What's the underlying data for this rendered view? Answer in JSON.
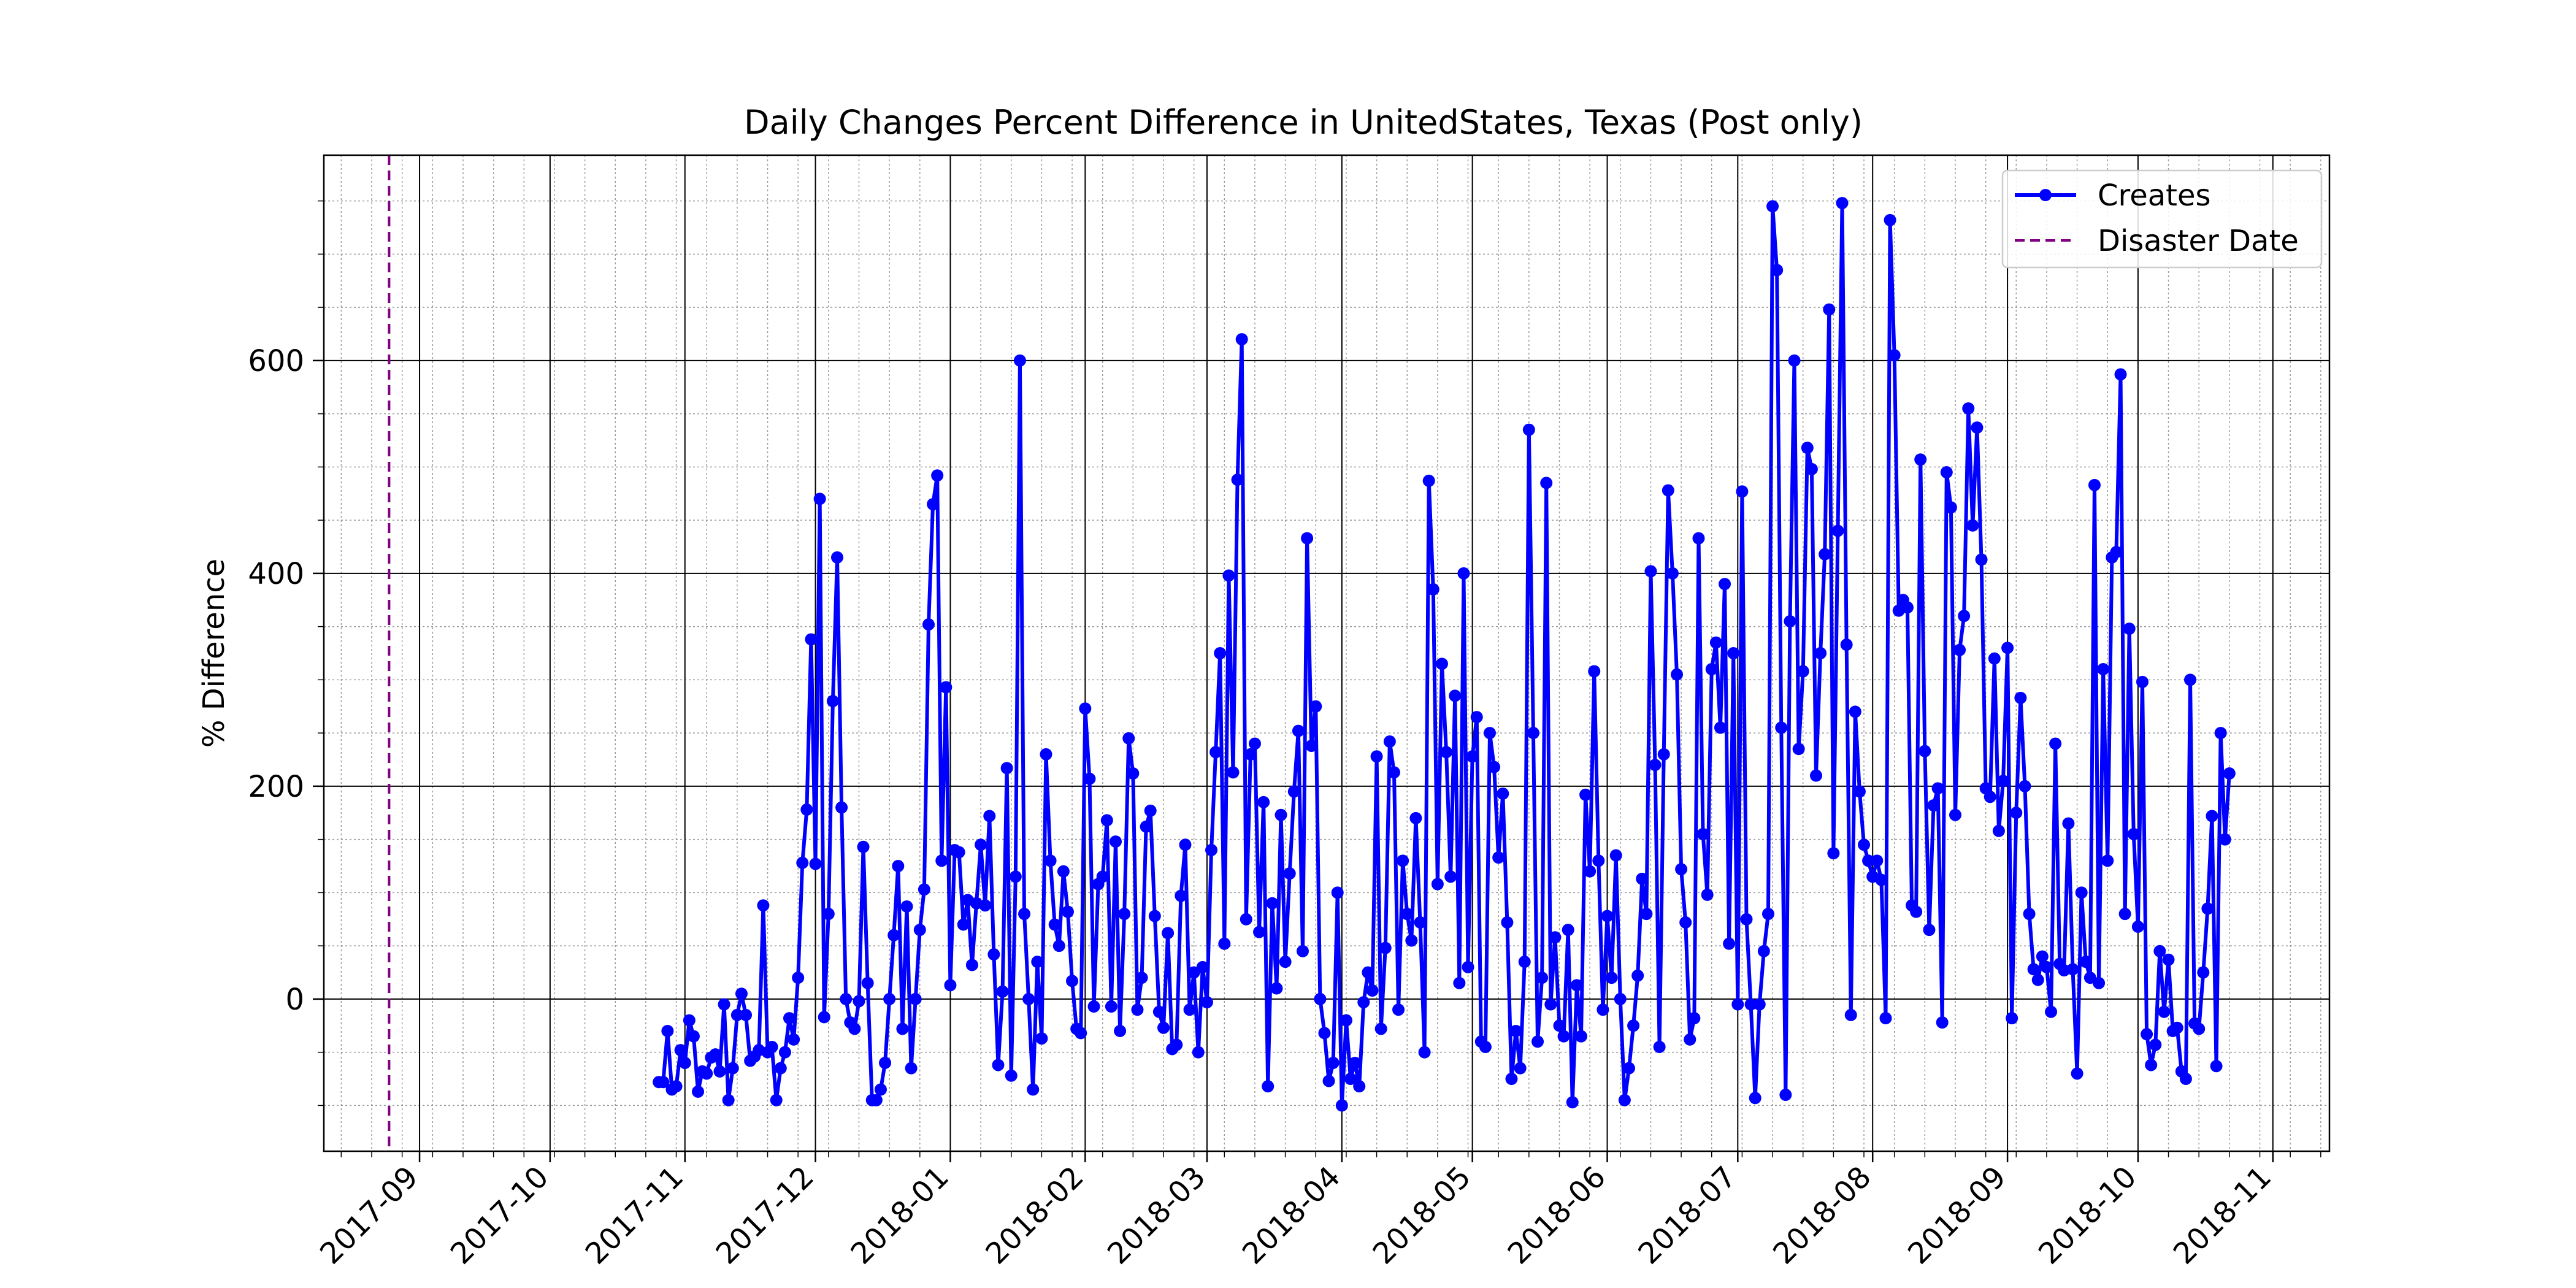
{
  "chart_data": {
    "type": "line",
    "title": "Daily Changes Percent Difference in UnitedStates, Texas (Post only)",
    "xlabel": "",
    "ylabel": "% Difference",
    "ylim": [
      -143,
      793
    ],
    "xlim": [
      "2017-08-10",
      "2018-11-14"
    ],
    "grid": "major and minor",
    "legend_position": "top-right",
    "x_tick_labels": [
      "2017-09",
      "2017-10",
      "2017-11",
      "2017-12",
      "2018-01",
      "2018-02",
      "2018-03",
      "2018-04",
      "2018-05",
      "2018-06",
      "2018-07",
      "2018-08",
      "2018-09",
      "2018-10",
      "2018-11"
    ],
    "y_tick_labels": [
      "0",
      "200",
      "400",
      "600"
    ],
    "y_ticks": [
      0,
      200,
      400,
      600
    ],
    "disaster_date": "2017-08-25",
    "series": [
      {
        "name": "Creates",
        "color": "#0000ff",
        "marker": "circle",
        "start_date": "2017-10-26",
        "values": [
          -78,
          -78,
          -30,
          -85,
          -82,
          -48,
          -60,
          -20,
          -35,
          -87,
          -68,
          -70,
          -55,
          -52,
          -68,
          -5,
          -95,
          -65,
          -15,
          5,
          -15,
          -58,
          -54,
          -48,
          88,
          -50,
          -45,
          -95,
          -65,
          -50,
          -18,
          -38,
          20,
          128,
          178,
          338,
          127,
          470,
          -17,
          80,
          280,
          415,
          180,
          0,
          -22,
          -28,
          -2,
          143,
          15,
          -95,
          -95,
          -85,
          -60,
          0,
          60,
          125,
          -28,
          87,
          -65,
          0,
          65,
          103,
          352,
          465,
          492,
          130,
          293,
          13,
          140,
          138,
          70,
          93,
          32,
          90,
          145,
          88,
          172,
          42,
          -62,
          7,
          217,
          -72,
          115,
          600,
          80,
          0,
          -85,
          35,
          -37,
          230,
          130,
          70,
          50,
          120,
          82,
          17,
          -28,
          -32,
          273,
          207,
          -7,
          108,
          115,
          168,
          -7,
          148,
          -30,
          80,
          245,
          212,
          -10,
          20,
          162,
          177,
          78,
          -12,
          -27,
          62,
          -47,
          -43,
          97,
          145,
          -10,
          25,
          -50,
          30,
          -3,
          140,
          232,
          325,
          52,
          398,
          213,
          488,
          620,
          75,
          230,
          240,
          63,
          185,
          -82,
          90,
          10,
          173,
          35,
          118,
          195,
          252,
          45,
          433,
          238,
          275,
          0,
          -32,
          -77,
          -60,
          100,
          -100,
          -20,
          -75,
          -60,
          -82,
          -3,
          25,
          8,
          228,
          -28,
          48,
          242,
          213,
          -10,
          130,
          80,
          55,
          170,
          72,
          -50,
          487,
          385,
          108,
          315,
          232,
          115,
          285,
          15,
          400,
          30,
          228,
          265,
          -40,
          -45,
          250,
          218,
          133,
          193,
          72,
          -75,
          -30,
          -65,
          35,
          535,
          250,
          -40,
          20,
          485,
          -5,
          58,
          -25,
          -35,
          65,
          -97,
          13,
          -35,
          192,
          120,
          308,
          130,
          -10,
          78,
          20,
          135,
          0,
          -95,
          -65,
          -25,
          22,
          113,
          80,
          402,
          220,
          -45,
          230,
          478,
          400,
          305,
          122,
          72,
          -38,
          -18,
          433,
          155,
          98,
          310,
          335,
          255,
          390,
          52,
          325,
          -5,
          477,
          75,
          -5,
          -93,
          -5,
          45,
          80,
          745,
          685,
          255,
          -90,
          355,
          600,
          235,
          308,
          518,
          498,
          210,
          325,
          418,
          648,
          137,
          440,
          748,
          333,
          -15,
          270,
          195,
          145,
          130,
          115,
          130,
          112,
          -18,
          732,
          605,
          365,
          375,
          368,
          88,
          82,
          507,
          233,
          65,
          182,
          198,
          -22,
          495,
          462,
          173,
          328,
          360,
          555,
          445,
          537,
          413,
          198,
          190,
          320,
          158,
          205,
          330,
          -18,
          175,
          283,
          200,
          80,
          28,
          18,
          40,
          30,
          -12,
          240,
          33,
          27,
          165,
          28,
          -70,
          100,
          35,
          20,
          483,
          15,
          310,
          130,
          415,
          420,
          587,
          80,
          348,
          155,
          68,
          298,
          -33,
          -62,
          -43,
          45,
          -12,
          37,
          -30,
          -27,
          -68,
          -75,
          300,
          -23,
          -28,
          25,
          85,
          172,
          -63,
          250,
          150,
          212
        ]
      },
      {
        "name": "Disaster Date",
        "color": "#800080",
        "style": "dashed"
      }
    ]
  }
}
